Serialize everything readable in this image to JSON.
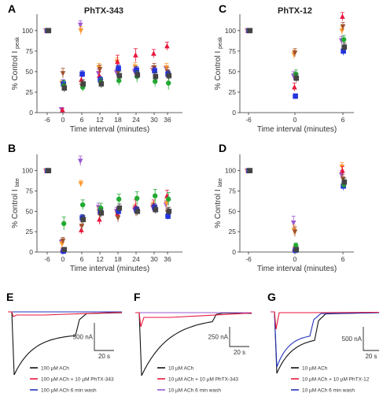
{
  "chart_data": [
    {
      "id": "A",
      "panel_label": "A",
      "title": "PhTX-343",
      "type": "scatter",
      "xlabel": "Time interval (minutes)",
      "ylabel_main": "% Control I",
      "ylabel_sub": "peak",
      "x_ticks": [
        "-6",
        "0",
        "6",
        "12",
        "18",
        "24",
        "30",
        "36"
      ],
      "y_ticks": [
        0,
        25,
        50,
        75,
        100
      ],
      "ylim": [
        0,
        120
      ],
      "series": [
        {
          "color": "#9b59d0",
          "marker": "triangle-down",
          "values": [
            100,
            4,
            107,
            48,
            49,
            50,
            52,
            54
          ],
          "errors": [
            0,
            2,
            5,
            5,
            4,
            4,
            4,
            3
          ]
        },
        {
          "color": "#ff9933",
          "marker": "triangle-down",
          "values": [
            100,
            36,
            100,
            55,
            62,
            56,
            52,
            55
          ],
          "errors": [
            0,
            4,
            5,
            5,
            5,
            5,
            5,
            5
          ]
        },
        {
          "color": "#e8173c",
          "marker": "triangle",
          "values": [
            100,
            3,
            40,
            45,
            62,
            70,
            72,
            81
          ],
          "errors": [
            0,
            2,
            5,
            5,
            8,
            8,
            5,
            5
          ]
        },
        {
          "color": "#a0522d",
          "marker": "triangle-down",
          "values": [
            100,
            48,
            33,
            53,
            50,
            51,
            55,
            50
          ],
          "errors": [
            0,
            6,
            5,
            5,
            5,
            5,
            5,
            5
          ]
        },
        {
          "color": "#2233dd",
          "marker": "square",
          "values": [
            100,
            35,
            47,
            40,
            54,
            52,
            51,
            47
          ],
          "errors": [
            0,
            5,
            4,
            4,
            4,
            4,
            4,
            4
          ]
        },
        {
          "color": "#22aa33",
          "marker": "circle",
          "values": [
            100,
            33,
            31,
            37,
            39,
            44,
            38,
            36
          ],
          "errors": [
            0,
            6,
            5,
            5,
            6,
            7,
            6,
            8
          ]
        },
        {
          "color": "#444444",
          "marker": "square",
          "values": [
            100,
            30,
            35,
            35,
            45,
            46,
            44,
            45
          ],
          "errors": [
            0,
            5,
            5,
            5,
            5,
            5,
            5,
            5
          ]
        }
      ]
    },
    {
      "id": "B",
      "panel_label": "B",
      "title": "",
      "type": "scatter",
      "xlabel": "Time interval (minutes)",
      "ylabel_main": "% Control I",
      "ylabel_sub": "late",
      "x_ticks": [
        "-6",
        "0",
        "6",
        "12",
        "18",
        "24",
        "30",
        "36"
      ],
      "y_ticks": [
        0,
        25,
        50,
        75,
        100
      ],
      "ylim": [
        0,
        120
      ],
      "series": [
        {
          "color": "#9b59d0",
          "marker": "triangle-down",
          "values": [
            100,
            12,
            112,
            55,
            50,
            52,
            55,
            58
          ],
          "errors": [
            0,
            3,
            6,
            5,
            5,
            5,
            5,
            5
          ]
        },
        {
          "color": "#ff9933",
          "marker": "triangle-down",
          "values": [
            100,
            10,
            84,
            50,
            47,
            54,
            57,
            60
          ],
          "errors": [
            0,
            3,
            4,
            5,
            5,
            5,
            5,
            5
          ]
        },
        {
          "color": "#e8173c",
          "marker": "triangle",
          "values": [
            100,
            3,
            27,
            40,
            47,
            56,
            58,
            69
          ],
          "errors": [
            0,
            2,
            5,
            6,
            6,
            8,
            6,
            7
          ]
        },
        {
          "color": "#a0522d",
          "marker": "triangle-down",
          "values": [
            100,
            14,
            32,
            46,
            42,
            49,
            55,
            49
          ],
          "errors": [
            0,
            4,
            5,
            5,
            5,
            5,
            5,
            5
          ]
        },
        {
          "color": "#2233dd",
          "marker": "square",
          "values": [
            100,
            1,
            42,
            50,
            50,
            52,
            55,
            44
          ],
          "errors": [
            0,
            1,
            4,
            4,
            4,
            4,
            4,
            4
          ]
        },
        {
          "color": "#22aa33",
          "marker": "circle",
          "values": [
            100,
            35,
            58,
            54,
            65,
            66,
            69,
            65
          ],
          "errors": [
            0,
            8,
            6,
            6,
            6,
            8,
            8,
            8
          ]
        },
        {
          "color": "#444444",
          "marker": "square",
          "values": [
            100,
            3,
            40,
            48,
            54,
            50,
            52,
            50
          ],
          "errors": [
            0,
            2,
            5,
            5,
            5,
            5,
            5,
            5
          ]
        }
      ]
    },
    {
      "id": "C",
      "panel_label": "C",
      "title": "PhTX-12",
      "type": "scatter",
      "xlabel": "Time interval (minutes)",
      "ylabel_main": "% Control I",
      "ylabel_sub": "peak",
      "x_ticks": [
        "-6",
        "0",
        "6"
      ],
      "y_ticks": [
        0,
        25,
        50,
        75,
        100
      ],
      "ylim": [
        0,
        120
      ],
      "series": [
        {
          "color": "#9b59d0",
          "marker": "triangle-down",
          "values": [
            100,
            45,
            88
          ],
          "errors": [
            0,
            5,
            5
          ]
        },
        {
          "color": "#ff9933",
          "marker": "triangle-down",
          "values": [
            100,
            71,
            100
          ],
          "errors": [
            0,
            5,
            5
          ]
        },
        {
          "color": "#e8173c",
          "marker": "triangle",
          "values": [
            100,
            31,
            117
          ],
          "errors": [
            0,
            5,
            5
          ]
        },
        {
          "color": "#a0522d",
          "marker": "triangle-down",
          "values": [
            100,
            73,
            105
          ],
          "errors": [
            0,
            5,
            5
          ]
        },
        {
          "color": "#2233dd",
          "marker": "square",
          "values": [
            100,
            20,
            75
          ],
          "errors": [
            0,
            3,
            5
          ]
        },
        {
          "color": "#22aa33",
          "marker": "circle",
          "values": [
            100,
            47,
            89
          ],
          "errors": [
            0,
            5,
            5
          ]
        },
        {
          "color": "#444444",
          "marker": "square",
          "values": [
            100,
            42,
            80
          ],
          "errors": [
            0,
            5,
            5
          ]
        }
      ]
    },
    {
      "id": "D",
      "panel_label": "D",
      "title": "",
      "type": "scatter",
      "xlabel": "Time interval (minutes)",
      "ylabel_main": "% Control I",
      "ylabel_sub": "late",
      "x_ticks": [
        "-6",
        "0",
        "6"
      ],
      "y_ticks": [
        0,
        25,
        50,
        75,
        100
      ],
      "ylim": [
        0,
        120
      ],
      "series": [
        {
          "color": "#9b59d0",
          "marker": "triangle-down",
          "values": [
            100,
            36,
            95
          ],
          "errors": [
            0,
            8,
            5
          ]
        },
        {
          "color": "#ff9933",
          "marker": "triangle-down",
          "values": [
            100,
            27,
            105
          ],
          "errors": [
            0,
            6,
            5
          ]
        },
        {
          "color": "#e8173c",
          "marker": "triangle",
          "values": [
            100,
            4,
            100
          ],
          "errors": [
            0,
            2,
            5
          ]
        },
        {
          "color": "#a0522d",
          "marker": "triangle-down",
          "values": [
            100,
            25,
            90
          ],
          "errors": [
            0,
            6,
            5
          ]
        },
        {
          "color": "#2233dd",
          "marker": "square",
          "values": [
            100,
            2,
            81
          ],
          "errors": [
            0,
            1,
            5
          ]
        },
        {
          "color": "#22aa33",
          "marker": "circle",
          "values": [
            100,
            8,
            83
          ],
          "errors": [
            0,
            3,
            5
          ]
        },
        {
          "color": "#444444",
          "marker": "square",
          "values": [
            100,
            3,
            86
          ],
          "errors": [
            0,
            2,
            5
          ]
        }
      ]
    }
  ],
  "traces": [
    {
      "panel_label": "E",
      "scale_current": "500 nA",
      "scale_time": "20 s",
      "legend": [
        {
          "label": "100 µM ACh",
          "color": "#111111"
        },
        {
          "label": "100 µM ACh + 10 µM PhTX-343",
          "color": "#e8173c"
        },
        {
          "label": "100 µM ACh 6 min wash",
          "color": "#2233bb"
        }
      ]
    },
    {
      "panel_label": "F",
      "scale_current": "250 nA",
      "scale_time": "20 s",
      "legend": [
        {
          "label": "10 µM ACh",
          "color": "#111111"
        },
        {
          "label": "10 µM ACh + 10 µM PhTX-343",
          "color": "#e8173c"
        },
        {
          "label": "10 µM ACh 6 min wash",
          "color": "#9b59d0"
        }
      ]
    },
    {
      "panel_label": "G",
      "scale_current": "500 nA",
      "scale_time": "20 s",
      "legend": [
        {
          "label": "10 µM ACh",
          "color": "#111111"
        },
        {
          "label": "10 µM ACh + 10 µM PhTX-12",
          "color": "#e8173c"
        },
        {
          "label": "10 µM ACh 6 min wash",
          "color": "#2233bb"
        }
      ]
    }
  ]
}
